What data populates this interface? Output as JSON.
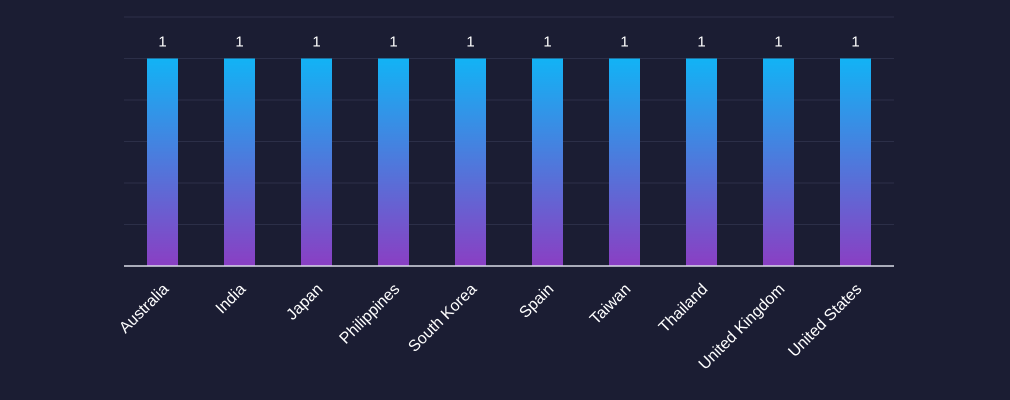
{
  "chart_data": {
    "type": "bar",
    "categories": [
      "Australia",
      "India",
      "Japan",
      "Philippines",
      "South Korea",
      "Spain",
      "Taiwan",
      "Thailand",
      "United Kingdom",
      "United States"
    ],
    "values": [
      1,
      1,
      1,
      1,
      1,
      1,
      1,
      1,
      1,
      1
    ],
    "title": "",
    "xlabel": "",
    "ylabel": "",
    "ylim": [
      0,
      1.2
    ],
    "grid": true,
    "data_labels": true,
    "colors": {
      "background": "#1b1d33",
      "bar_top": "#12b3f5",
      "bar_bottom": "#8a3fc3",
      "grid": "#2c2f48",
      "axis": "#d9dbe8",
      "text": "#ffffff"
    }
  }
}
